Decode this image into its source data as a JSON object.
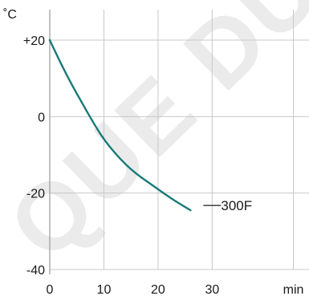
{
  "chart_data": {
    "type": "line",
    "y_unit": "˚C",
    "x_unit": "min",
    "xlim": [
      0,
      60
    ],
    "ylim": [
      -40,
      20
    ],
    "grid": true,
    "x_ticks": [
      {
        "value": 0,
        "label": "0"
      },
      {
        "value": 10,
        "label": "10"
      },
      {
        "value": 20,
        "label": "20"
      },
      {
        "value": 30,
        "label": "30"
      },
      {
        "value": 45,
        "label": "min"
      }
    ],
    "y_ticks": [
      {
        "value": 20,
        "label": "+20"
      },
      {
        "value": 0,
        "label": "0"
      },
      {
        "value": -20,
        "label": "-20"
      },
      {
        "value": -40,
        "label": "-40"
      }
    ],
    "series": [
      {
        "name": "300F",
        "color": "#1a7a7a",
        "points": [
          [
            0,
            20
          ],
          [
            2,
            14
          ],
          [
            4,
            8.5
          ],
          [
            6,
            3.5
          ],
          [
            8,
            -1.5
          ],
          [
            10,
            -6
          ],
          [
            12,
            -9.5
          ],
          [
            14,
            -12.5
          ],
          [
            16,
            -15
          ],
          [
            18,
            -17
          ],
          [
            20,
            -19
          ],
          [
            22,
            -21
          ],
          [
            24,
            -22.8
          ],
          [
            26,
            -24.5
          ]
        ],
        "label_value": [
          26,
          -24.5
        ]
      }
    ],
    "watermark": "QUE DU"
  }
}
